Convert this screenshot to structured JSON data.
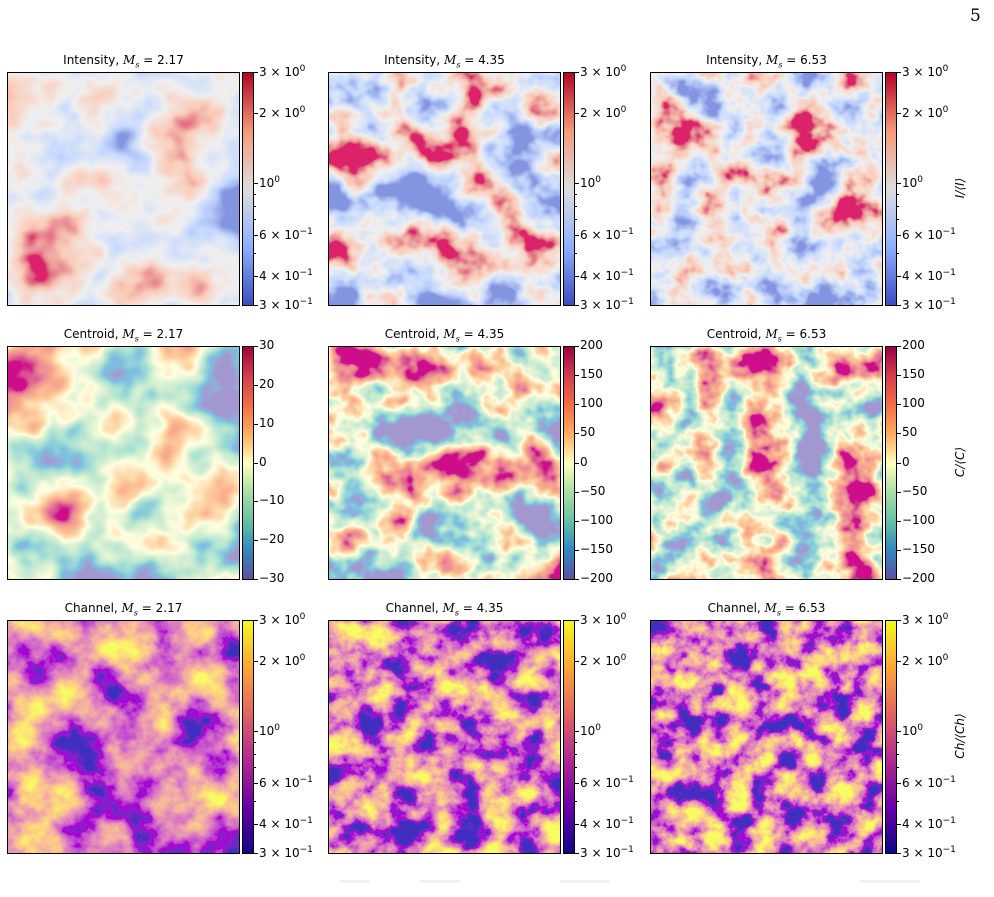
{
  "page_number": "5",
  "rows": [
    {
      "kind": "intensity",
      "colormap": [
        "#3b4cc0",
        "#8db0fe",
        "#dddddd",
        "#f49a7b",
        "#b40426"
      ],
      "row_label": "I/⟨I⟩",
      "ticks": [
        {
          "base": "3 × 10",
          "exp": "0"
        },
        {
          "base": "2 × 10",
          "exp": "0"
        },
        {
          "base": "10",
          "exp": "0"
        },
        {
          "base": "6 × 10",
          "exp": "−1"
        },
        {
          "base": "4 × 10",
          "exp": "−1"
        },
        {
          "base": "3 × 10",
          "exp": "−1"
        }
      ],
      "panels": [
        {
          "prefix": "Intensity, ",
          "ms": "M",
          "sub": "s",
          "value": " = 2.17"
        },
        {
          "prefix": "Intensity, ",
          "ms": "M",
          "sub": "s",
          "value": " = 4.35"
        },
        {
          "prefix": "Intensity, ",
          "ms": "M",
          "sub": "s",
          "value": " = 6.53"
        }
      ]
    },
    {
      "kind": "centroid",
      "colormap": [
        "#5e4fa2",
        "#3288bd",
        "#66c2a5",
        "#abdda4",
        "#ffffbf",
        "#fdae61",
        "#f46d43",
        "#d53e4f",
        "#9e0142"
      ],
      "row_label": "C/⟨C⟩",
      "panels": [
        {
          "prefix": "Centroid, ",
          "ms": "M",
          "sub": "s",
          "value": " = 2.17",
          "ticks": [
            "30",
            "20",
            "10",
            "0",
            "−10",
            "−20",
            "−30"
          ]
        },
        {
          "prefix": "Centroid, ",
          "ms": "M",
          "sub": "s",
          "value": " = 4.35",
          "ticks": [
            "200",
            "150",
            "100",
            "50",
            "0",
            "−50",
            "−100",
            "−150",
            "−200"
          ]
        },
        {
          "prefix": "Centroid, ",
          "ms": "M",
          "sub": "s",
          "value": " = 6.53",
          "ticks": [
            "200",
            "150",
            "100",
            "50",
            "0",
            "−50",
            "−100",
            "−150",
            "−200"
          ]
        }
      ]
    },
    {
      "kind": "channel",
      "colormap": [
        "#0d0887",
        "#6a00a8",
        "#b12a90",
        "#e16462",
        "#fca636",
        "#f0f921"
      ],
      "row_label": "Ch/⟨Ch⟩",
      "ticks": [
        {
          "base": "3 × 10",
          "exp": "0"
        },
        {
          "base": "2 × 10",
          "exp": "0"
        },
        {
          "base": "10",
          "exp": "0"
        },
        {
          "base": "6 × 10",
          "exp": "−1"
        },
        {
          "base": "4 × 10",
          "exp": "−1"
        },
        {
          "base": "3 × 10",
          "exp": "−1"
        }
      ],
      "panels": [
        {
          "prefix": "Channel, ",
          "ms": "M",
          "sub": "s",
          "value": " = 2.17"
        },
        {
          "prefix": "Channel, ",
          "ms": "M",
          "sub": "s",
          "value": " = 4.35"
        },
        {
          "prefix": "Channel, ",
          "ms": "M",
          "sub": "s",
          "value": " = 6.53"
        }
      ]
    }
  ]
}
